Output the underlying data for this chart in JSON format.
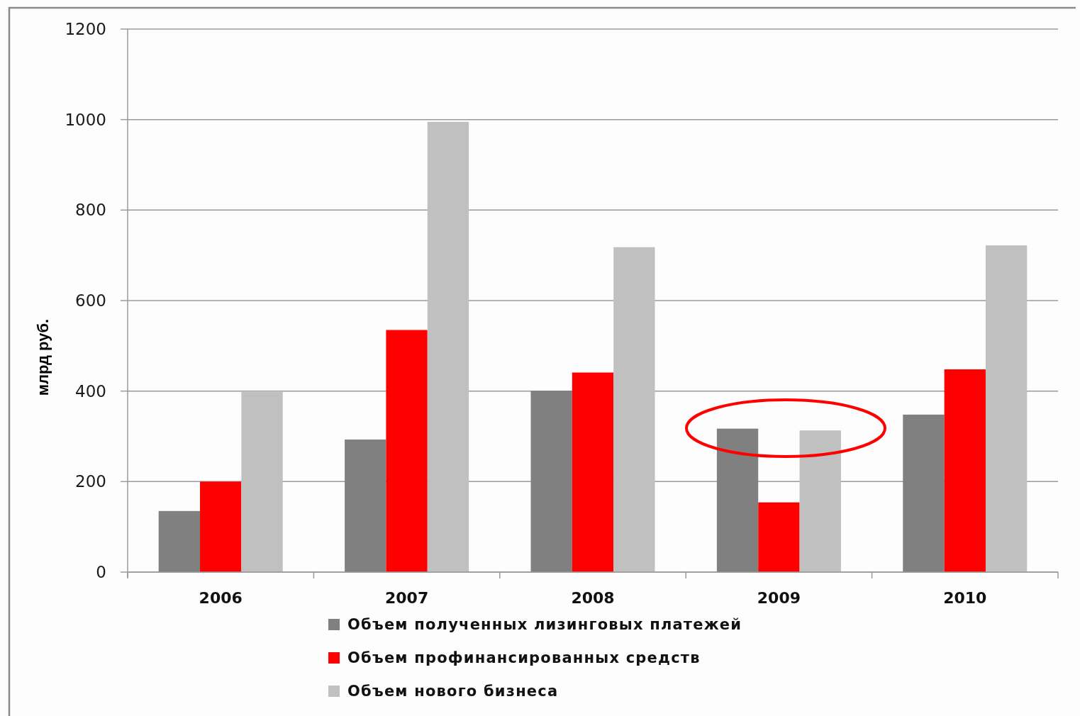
{
  "chart_data": {
    "type": "bar",
    "ylabel": "млрд руб.",
    "categories": [
      "2006",
      "2007",
      "2008",
      "2009",
      "2010"
    ],
    "series": [
      {
        "name": "Объем полученных лизинговых платежей",
        "color": "#808080",
        "values": [
          135,
          293,
          401,
          317,
          348
        ]
      },
      {
        "name": "Объем профинансированных средств",
        "color": "#ff0000",
        "values": [
          200,
          535,
          441,
          154,
          448
        ]
      },
      {
        "name": "Объем нового бизнеса",
        "color": "#c0c0c0",
        "values": [
          398,
          995,
          718,
          313,
          722
        ]
      }
    ],
    "ylim": [
      0,
      1200
    ],
    "yticks": [
      0,
      200,
      400,
      600,
      800,
      1000,
      1200
    ],
    "grid": "y",
    "legend": "bottom"
  }
}
